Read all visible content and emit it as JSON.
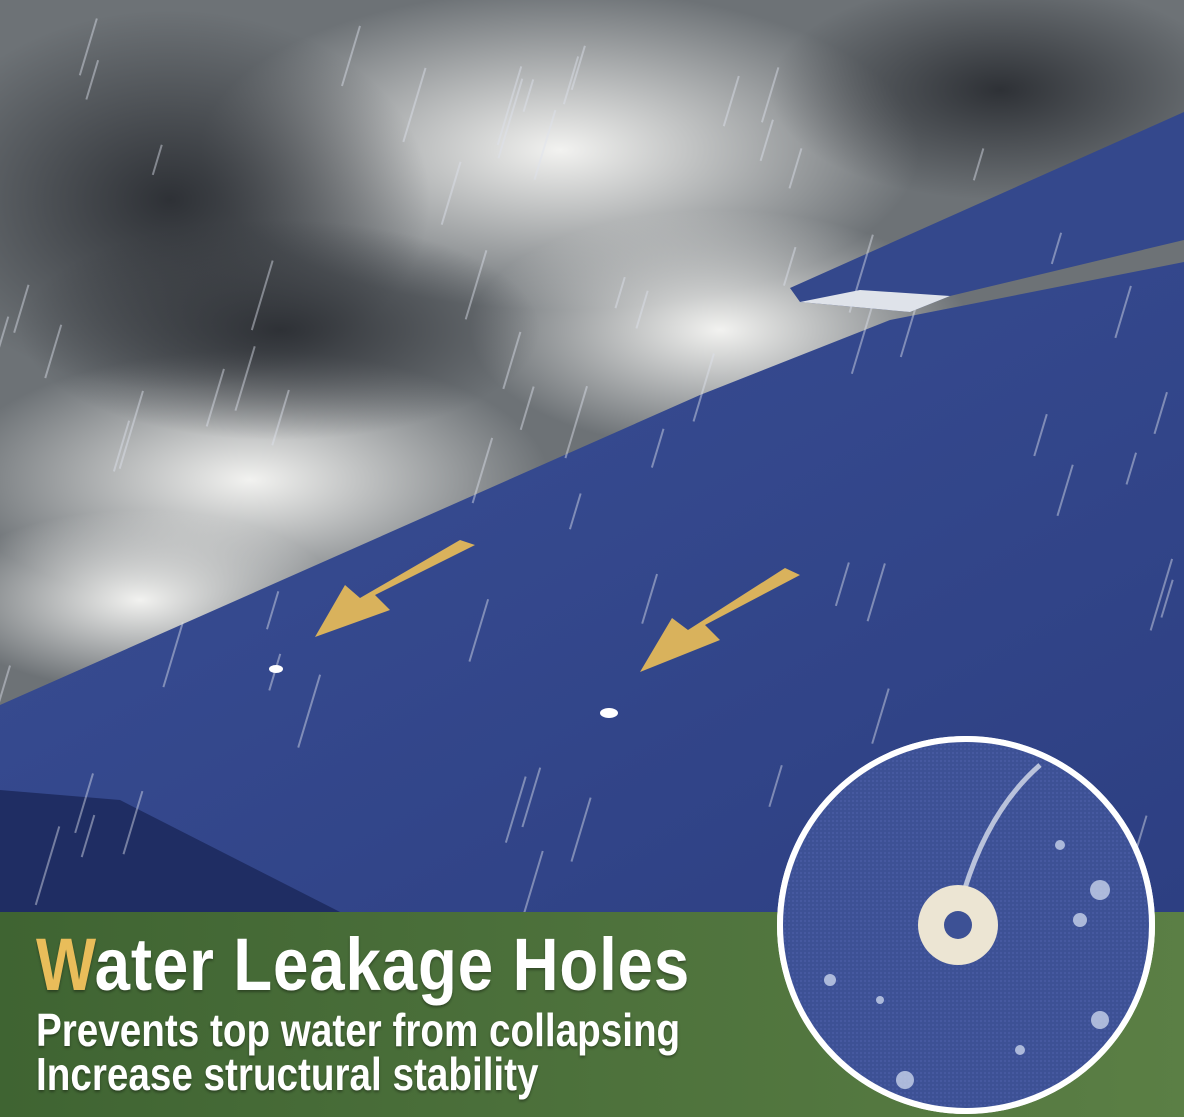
{
  "headline": {
    "title": "Water Leakage Holes",
    "lines": [
      "Prevents top water from collapsing",
      "Increase structural stability"
    ]
  }
}
